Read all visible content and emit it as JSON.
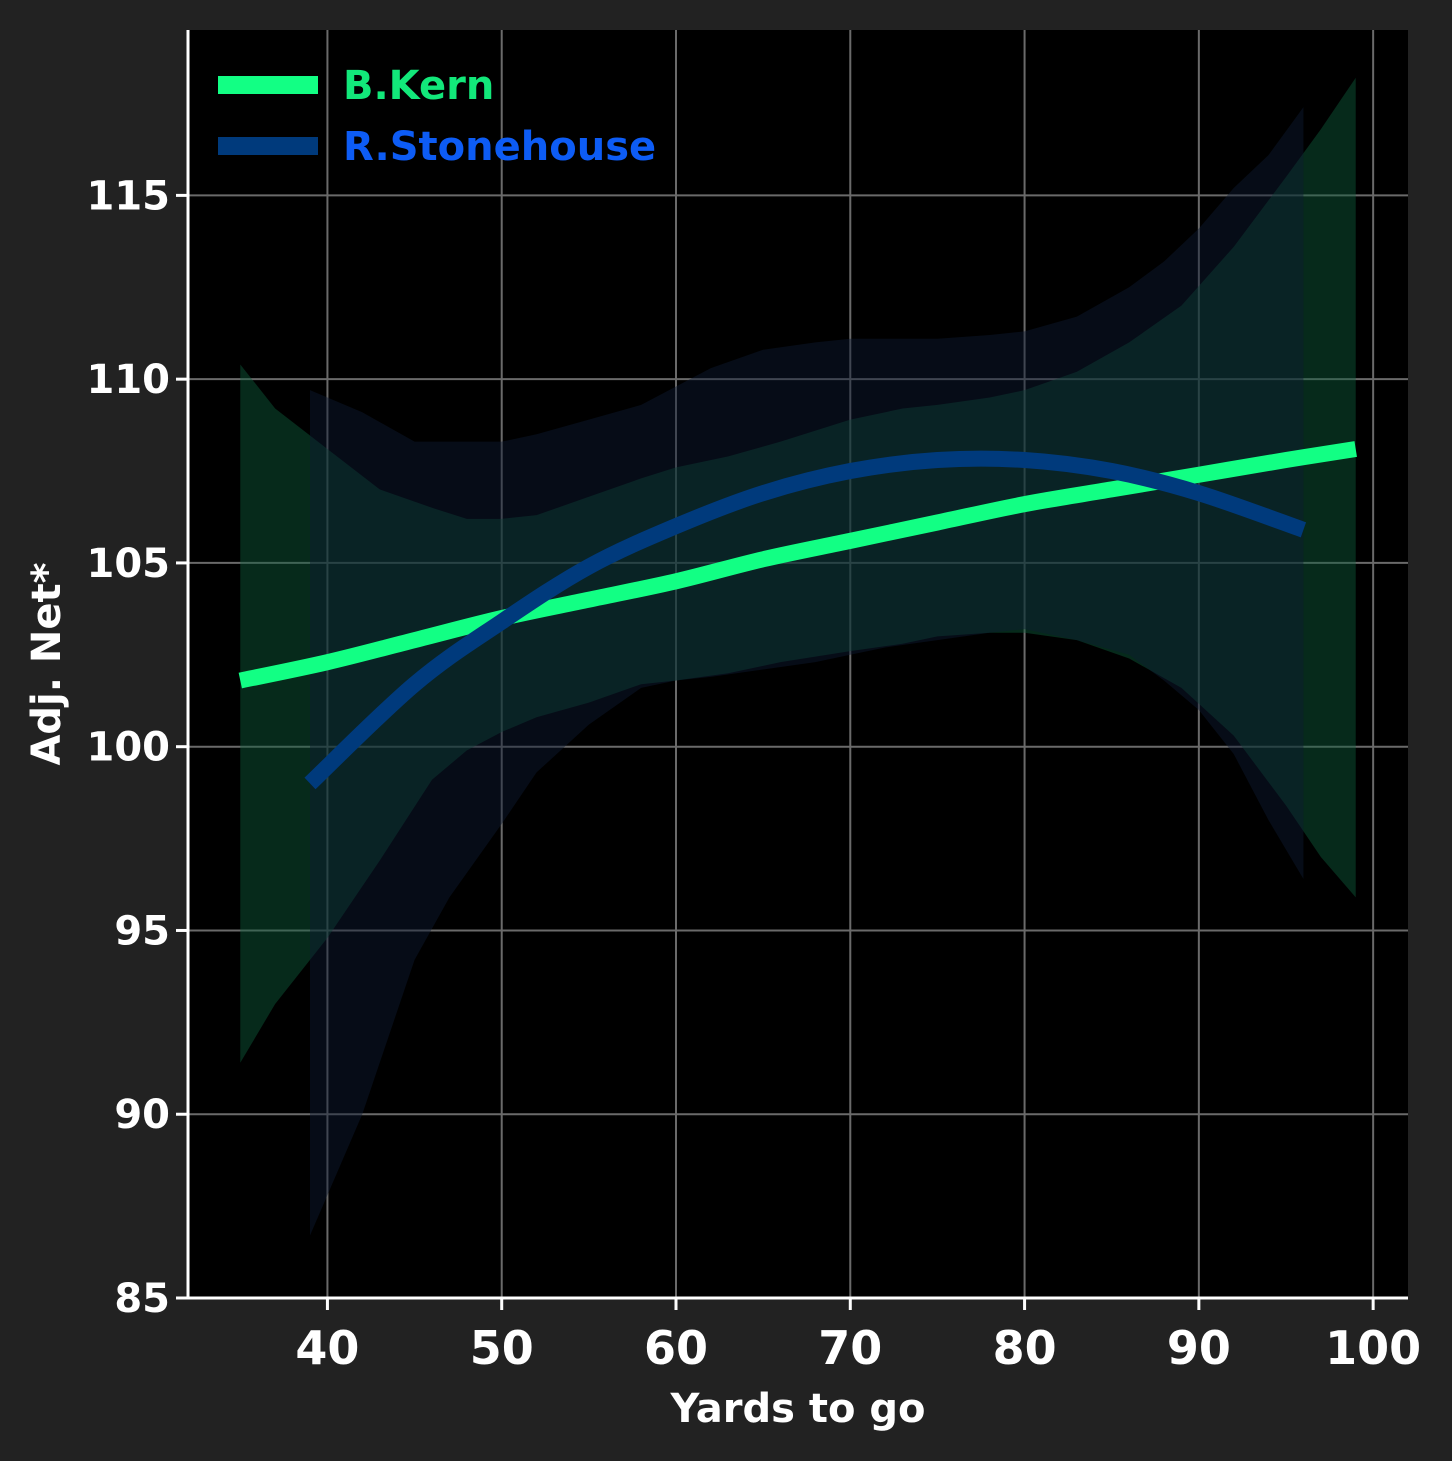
{
  "chart_data": {
    "type": "line",
    "xlabel": "Yards to go",
    "ylabel": "Adj. Net*",
    "xlim": [
      32,
      102
    ],
    "ylim": [
      85,
      119.5
    ],
    "x_ticks": [
      40,
      50,
      60,
      70,
      80,
      90,
      100
    ],
    "y_ticks": [
      85,
      90,
      95,
      100,
      105,
      110,
      115
    ],
    "grid": true,
    "legend_position": "top-left",
    "colors": {
      "background": "#222222",
      "plot_background": "#000000",
      "grid": "#6a6a6a",
      "axis": "#ffffff"
    },
    "series": [
      {
        "name": "B.Kern",
        "color": "#12ff84",
        "band_color": "#0e5e3b",
        "label_color": "#12e87a",
        "x": [
          35,
          40,
          45,
          50,
          55,
          60,
          65,
          70,
          75,
          80,
          85,
          90,
          95,
          99
        ],
        "y": [
          101.8,
          102.3,
          102.9,
          103.5,
          104.0,
          104.5,
          105.1,
          105.6,
          106.1,
          106.6,
          107.0,
          107.4,
          107.8,
          108.1
        ],
        "band_x": [
          35,
          37,
          40,
          43,
          46,
          48,
          50,
          52,
          55,
          58,
          60,
          63,
          66,
          70,
          73,
          75,
          78,
          80,
          83,
          86,
          89,
          92,
          95,
          97,
          99
        ],
        "band_lower": [
          91.4,
          93.0,
          94.8,
          96.9,
          99.1,
          99.9,
          100.4,
          100.8,
          101.2,
          101.7,
          101.8,
          102.0,
          102.3,
          102.6,
          102.8,
          103.0,
          103.1,
          103.1,
          102.9,
          102.4,
          101.6,
          100.3,
          98.4,
          97.0,
          95.9
        ],
        "band_upper": [
          110.4,
          109.2,
          108.1,
          107.0,
          106.5,
          106.2,
          106.2,
          106.3,
          106.8,
          107.3,
          107.6,
          107.9,
          108.3,
          108.9,
          109.2,
          109.3,
          109.5,
          109.7,
          110.2,
          111.0,
          112.0,
          113.6,
          115.5,
          116.8,
          118.2
        ]
      },
      {
        "name": "R.Stonehouse",
        "color": "#003a7c",
        "band_color": "#0d1a33",
        "label_color": "#0d5cf5",
        "x": [
          39,
          45,
          50,
          55,
          60,
          65,
          70,
          75,
          80,
          85,
          90,
          96
        ],
        "y": [
          99.0,
          101.7,
          103.4,
          104.9,
          106.0,
          106.9,
          107.5,
          107.8,
          107.8,
          107.5,
          106.9,
          105.9
        ],
        "band_x": [
          39,
          42,
          45,
          47,
          50,
          52,
          55,
          58,
          60,
          62,
          65,
          68,
          70,
          72,
          75,
          78,
          80,
          83,
          86,
          88,
          90,
          92,
          94,
          96
        ],
        "band_lower": [
          86.7,
          90.0,
          94.2,
          95.9,
          97.9,
          99.3,
          100.6,
          101.6,
          101.8,
          101.9,
          102.1,
          102.3,
          102.5,
          102.7,
          102.9,
          103.1,
          103.2,
          102.9,
          102.5,
          101.8,
          101.0,
          99.8,
          98.0,
          96.4
        ],
        "band_upper": [
          109.7,
          109.1,
          108.3,
          108.3,
          108.3,
          108.5,
          108.9,
          109.3,
          109.8,
          110.3,
          110.8,
          111.0,
          111.1,
          111.1,
          111.1,
          111.2,
          111.3,
          111.7,
          112.5,
          113.2,
          114.1,
          115.2,
          116.1,
          117.4
        ]
      }
    ]
  }
}
